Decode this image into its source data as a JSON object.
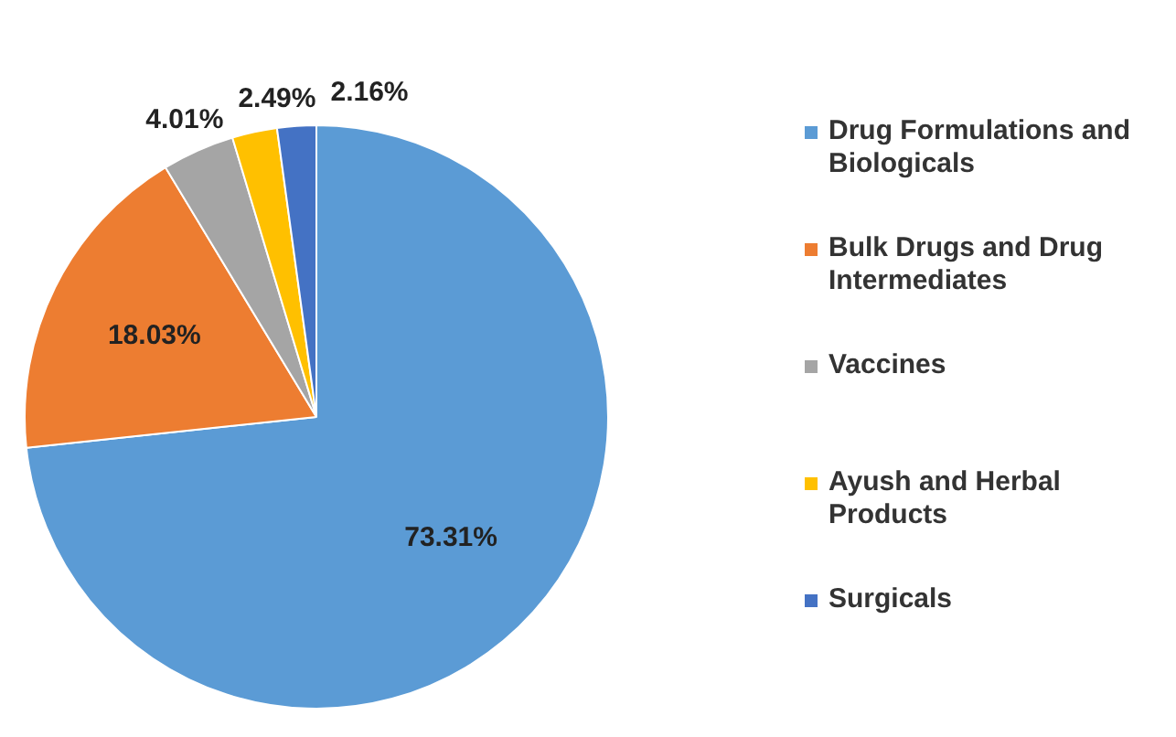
{
  "chart_data": {
    "type": "pie",
    "categories": [
      "Drug Formulations and Biologicals",
      "Bulk Drugs and Drug Intermediates",
      "Vaccines",
      "Ayush and Herbal Products",
      "Surgicals"
    ],
    "values": [
      73.31,
      18.03,
      4.01,
      2.49,
      2.16
    ],
    "colors": [
      "#5b9bd5",
      "#ed7d31",
      "#a5a5a5",
      "#ffc000",
      "#4472c4"
    ],
    "value_labels": [
      "73.31%",
      "18.03%",
      "4.01%",
      "2.49%",
      "2.16%"
    ],
    "legend": "right"
  }
}
